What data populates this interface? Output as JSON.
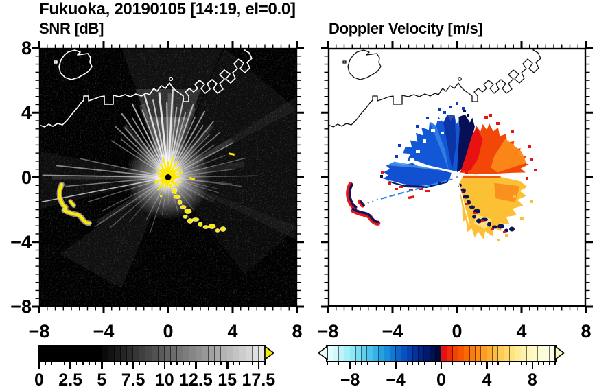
{
  "header": {
    "title": "Fukuoka, 20190105 [14:19, el=0.0]"
  },
  "panels": {
    "snr": {
      "subtitle": "SNR [dB]"
    },
    "velocity": {
      "subtitle": "Doppler Velocity [m/s]"
    }
  },
  "axes": {
    "min": -8,
    "max": 8,
    "minor_step": 0.5,
    "x_tick_values": [
      -8,
      -4,
      0,
      4,
      8
    ],
    "x_tick_labels": [
      "−8",
      "−4",
      "0",
      "4",
      "8"
    ],
    "y_tick_values": [
      8,
      4,
      0,
      -4,
      -8
    ],
    "y_tick_labels": [
      "8",
      "4",
      "0",
      "−4",
      "−8"
    ]
  },
  "colorbars": {
    "snr": {
      "min": 0,
      "max": 18,
      "minor_step": 0.5,
      "tick_values": [
        0,
        2.5,
        5,
        7.5,
        10,
        12.5,
        15,
        17.5
      ],
      "tick_labels": [
        "0",
        "2.5",
        "5",
        "7.5",
        "10",
        "12.5",
        "15",
        "17.5"
      ],
      "arrow_right_color": "#f2ee00",
      "segment_colors": [
        "#000000",
        "#000000",
        "#000000",
        "#000000",
        "#000000",
        "#000000",
        "#000000",
        "#000000",
        "#000000",
        "#000000",
        "#0a0a0a",
        "#131313",
        "#1c1c1c",
        "#252525",
        "#2d2d2d",
        "#363636",
        "#3f3f3f",
        "#484848",
        "#515151",
        "#5a5a5a",
        "#636363",
        "#6c6c6c",
        "#747474",
        "#7d7d7d",
        "#868686",
        "#8f8f8f",
        "#989898",
        "#a1a1a1",
        "#aaaaaa",
        "#b3b3b3",
        "#bbbbbb",
        "#c4c4c4",
        "#cdcdcd",
        "#d6d6d6",
        "#dfdfdf",
        "#e8e8e8"
      ]
    },
    "velocity": {
      "min": -10,
      "max": 10,
      "minor_step": 0.5,
      "tick_values": [
        -8,
        -4,
        0,
        4,
        8
      ],
      "tick_labels": [
        "−8",
        "−4",
        "0",
        "4",
        "8"
      ],
      "arrow_left_color": "#e9fdfd",
      "arrow_right_color": "#fcf6c0",
      "segment_colors": [
        "#e2fdfd",
        "#cff9fb",
        "#bbf5f9",
        "#a5eff7",
        "#8ee7f5",
        "#76ddf2",
        "#5fd1ef",
        "#49c3eb",
        "#35b3e7",
        "#25a1e2",
        "#1a8edc",
        "#1179d5",
        "#0b65cc",
        "#0752c0",
        "#0541b0",
        "#04319d",
        "#032486",
        "#02196d",
        "#021052",
        "#010938",
        "#e51010",
        "#ee2c07",
        "#f44104",
        "#f85503",
        "#fb6806",
        "#fd7a0c",
        "#fe8c16",
        "#fe9d22",
        "#feae31",
        "#febd42",
        "#fecb55",
        "#fed86a",
        "#fee380",
        "#feec96",
        "#fef2aa",
        "#fdf7bb",
        "#fdfac9",
        "#fcfcd5",
        "#fbfddf",
        "#fafde6"
      ]
    }
  },
  "rays": [
    [
      96,
      5.3,
      0.85,
      3
    ],
    [
      91,
      4.7,
      0.6,
      2
    ],
    [
      87,
      5.5,
      0.8,
      2.5
    ],
    [
      83,
      4.4,
      0.55,
      2
    ],
    [
      79,
      5.0,
      0.7,
      2
    ],
    [
      75,
      4.2,
      0.5,
      2
    ],
    [
      71,
      4.8,
      0.6,
      2
    ],
    [
      66,
      4.1,
      0.5,
      1.8
    ],
    [
      61,
      4.7,
      0.55,
      2
    ],
    [
      56,
      3.9,
      0.45,
      1.8
    ],
    [
      51,
      4.5,
      0.5,
      1.8
    ],
    [
      46,
      3.7,
      0.4,
      1.6
    ],
    [
      41,
      4.3,
      0.45,
      1.6
    ],
    [
      35,
      3.5,
      0.35,
      1.6
    ],
    [
      28,
      4.6,
      0.4,
      1.6
    ],
    [
      21,
      3.8,
      0.3,
      1.4
    ],
    [
      14,
      5.0,
      0.35,
      1.4
    ],
    [
      7,
      4.2,
      0.28,
      1.4
    ],
    [
      1,
      5.5,
      0.3,
      1.4
    ],
    [
      -6,
      4.0,
      0.25,
      1.3
    ],
    [
      -13,
      3.2,
      0.22,
      1.3
    ],
    [
      101,
      4.9,
      0.7,
      2.2
    ],
    [
      106,
      5.4,
      0.8,
      2.4
    ],
    [
      111,
      4.5,
      0.6,
      2
    ],
    [
      116,
      5.1,
      0.7,
      2
    ],
    [
      121,
      4.3,
      0.55,
      1.8
    ],
    [
      126,
      4.9,
      0.6,
      2
    ],
    [
      131,
      4.1,
      0.5,
      1.8
    ],
    [
      136,
      4.6,
      0.5,
      1.8
    ],
    [
      141,
      3.8,
      0.4,
      1.6
    ],
    [
      147,
      4.2,
      0.4,
      1.6
    ],
    [
      168,
      5.6,
      0.4,
      1.6
    ],
    [
      174,
      7.0,
      0.5,
      1.8
    ],
    [
      179,
      7.8,
      0.55,
      1.6
    ],
    [
      185,
      6.4,
      0.45,
      1.5
    ],
    [
      191,
      8.0,
      0.7,
      1.5
    ],
    [
      197,
      5.2,
      0.35,
      1.4
    ],
    [
      207,
      4.6,
      0.3,
      1.4
    ],
    [
      214,
      5.5,
      0.35,
      1.4
    ],
    [
      221,
      4.8,
      0.3,
      1.3
    ],
    [
      229,
      3.7,
      0.25,
      1.3
    ],
    [
      243,
      3.0,
      0.28,
      1.2
    ],
    [
      252,
      3.6,
      0.32,
      1.2
    ],
    [
      261,
      2.4,
      0.25,
      1.1
    ],
    [
      272,
      1.8,
      0.2,
      1.1
    ],
    [
      286,
      2.3,
      0.25,
      1.2
    ],
    [
      297,
      3.1,
      0.3,
      1.3
    ],
    [
      308,
      2.6,
      0.25,
      1.2
    ],
    [
      319,
      2.0,
      0.22,
      1.1
    ],
    [
      331,
      2.8,
      0.25,
      1.2
    ],
    [
      343,
      3.3,
      0.28,
      1.3
    ],
    [
      353,
      4.6,
      0.3,
      1.4
    ],
    [
      88,
      5.2,
      0.18,
      9
    ],
    [
      70,
      4.6,
      0.15,
      8
    ],
    [
      110,
      4.8,
      0.16,
      8
    ],
    [
      50,
      4.2,
      0.12,
      7
    ],
    [
      130,
      4.2,
      0.12,
      7
    ],
    [
      180,
      7.2,
      0.12,
      6
    ],
    [
      213,
      5.2,
      0.1,
      8
    ],
    [
      30,
      4.6,
      0.1,
      8
    ],
    [
      10,
      4.8,
      0.08,
      9
    ],
    [
      333,
      3.2,
      0.08,
      8
    ]
  ],
  "chart_data": {
    "type": "heatmap",
    "title": "Fukuoka, 20190105 [14:19, el=0.0]",
    "description": "Doppler lidar PPI scan at elevation 0.0 deg, radar at origin, distances in km",
    "x_range_km": [
      -8,
      8
    ],
    "y_range_km": [
      -8,
      8
    ],
    "x_ticks": [
      -8,
      -4,
      0,
      4,
      8
    ],
    "y_ticks": [
      8,
      4,
      0,
      -4,
      -8
    ],
    "minor_tick_step_km": 0.5,
    "panels": [
      {
        "name": "SNR [dB]",
        "colormap": "grayscale black to white, yellow overflow arrow above max",
        "scale_range_dB": [
          0,
          18
        ],
        "colorbar_ticks": [
          0,
          2.5,
          5,
          7.5,
          10,
          12.5,
          15,
          17.5
        ],
        "features": [
          "radial beams of enhanced SNR fanning N, NE, E, W and SW from radar at origin",
          "saturated yellow core at origin with black instrument dot",
          "yellow hard-target echoes along coastal arc SE of radar from (0.2,-0.5) to (3.4,-3.2) km",
          "yellow terrain arcs near (-6.6,-1) km and (-5.5,-2.5) km",
          "white coastline of Hakata Bay: island near (-5.5,7) km, harbor piers NE, coast exits top near x=4 km"
        ]
      },
      {
        "name": "Doppler Velocity [m/s]",
        "colormap": "pale cyan to navy for negative, red to orange to cream for positive",
        "scale_range_ms": [
          -10,
          10
        ],
        "colorbar_ticks": [
          -8,
          -4,
          0,
          4,
          8
        ],
        "features": [
          "blue sector (toward radar, about -3 to -8 m/s) NW to N of origin",
          "narrow navy band (about -9 m/s) near due N",
          "red to orange sector (away, about +1 to +5 m/s) NE to E",
          "yellow-orange sector (about +5 to +9 m/s) E to SE",
          "blue lobe due W with navy edge and red ground-clutter fringe",
          "navy/red ground echoes along SE coastal arc and SW terrain arcs",
          "white = no data; white masked disc at origin"
        ]
      }
    ]
  }
}
